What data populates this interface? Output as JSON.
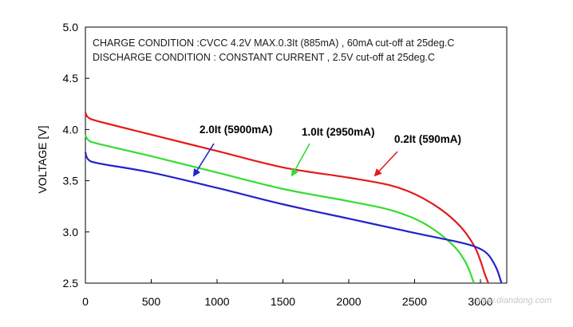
{
  "chart_data": {
    "type": "line",
    "title": "",
    "ylabel": "VOLTAGE  [V]",
    "xlabel": "",
    "xlim": [
      0,
      3200
    ],
    "ylim": [
      2.5,
      5.0
    ],
    "xticks": [
      0,
      500,
      1000,
      1500,
      2000,
      2500,
      3000
    ],
    "yticks": [
      2.5,
      3.0,
      3.5,
      4.0,
      4.5,
      5.0
    ],
    "ytick_labels": [
      "2.5",
      "3.0",
      "3.5",
      "4.0",
      "4.5",
      "5.0"
    ],
    "grid": false,
    "legend": "none",
    "annotations": [
      "CHARGE CONDITION :CVCC 4.2V MAX.0.3It (885mA) , 60mA cut-off at  25deg.C",
      "DISCHARGE CONDITION : CONSTANT CURRENT , 2.5V cut-off at  25deg.C"
    ],
    "series": [
      {
        "name": "0.2It (590mA)",
        "color": "#e21b1b",
        "x": [
          0,
          20,
          100,
          500,
          1000,
          1500,
          2000,
          2300,
          2500,
          2700,
          2850,
          2950,
          3000,
          3030,
          3060
        ],
        "y": [
          4.17,
          4.12,
          4.08,
          3.95,
          3.79,
          3.63,
          3.53,
          3.46,
          3.37,
          3.22,
          3.05,
          2.87,
          2.72,
          2.6,
          2.5
        ]
      },
      {
        "name": "1.0It (2950mA)",
        "color": "#33dd33",
        "x": [
          0,
          20,
          100,
          500,
          1000,
          1500,
          2000,
          2300,
          2500,
          2650,
          2800,
          2880,
          2920,
          2950
        ],
        "y": [
          3.95,
          3.9,
          3.86,
          3.74,
          3.58,
          3.42,
          3.3,
          3.22,
          3.13,
          3.02,
          2.86,
          2.72,
          2.61,
          2.5
        ]
      },
      {
        "name": "2.0It (5900mA)",
        "color": "#2222cc",
        "x": [
          0,
          20,
          100,
          500,
          1000,
          1500,
          2000,
          2500,
          2800,
          2950,
          3050,
          3120,
          3160
        ],
        "y": [
          3.78,
          3.71,
          3.67,
          3.58,
          3.43,
          3.27,
          3.13,
          2.99,
          2.91,
          2.86,
          2.79,
          2.65,
          2.5
        ]
      }
    ],
    "watermark": "www.diandong.com"
  }
}
